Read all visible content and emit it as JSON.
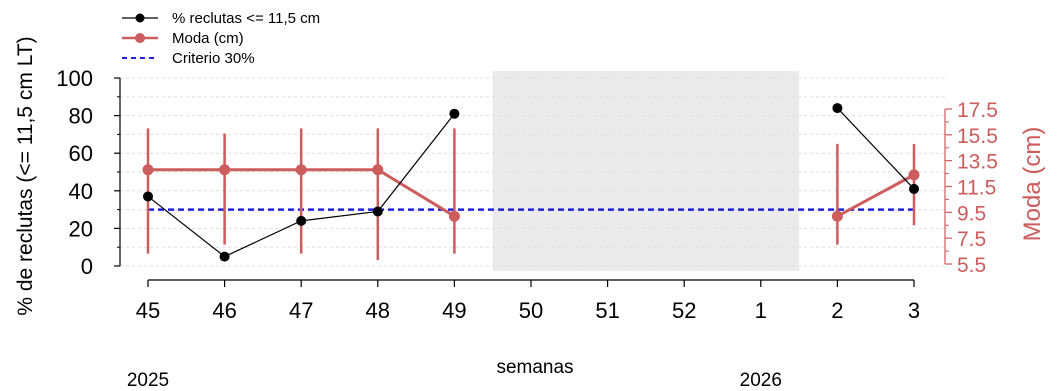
{
  "chart_data": {
    "type": "line",
    "title": "",
    "xlabel": "semanas",
    "ylabel": "% de reclutas (<= 11,5 cm LT)",
    "ylabel_right": "Moda (cm)",
    "categories": [
      "45",
      "46",
      "47",
      "48",
      "49",
      "50",
      "51",
      "52",
      "1",
      "2",
      "3"
    ],
    "years": [
      {
        "label": "2025",
        "at_category": "45"
      },
      {
        "label": "2026",
        "at_category": "1"
      }
    ],
    "ylim": [
      0,
      100
    ],
    "yticks": [
      "0",
      "20",
      "40",
      "60",
      "80",
      "100"
    ],
    "ylim_right": [
      5.5,
      17.5
    ],
    "yticks_right": [
      "5.5",
      "7.5",
      "9.5",
      "11.5",
      "13.5",
      "15.5",
      "17.5"
    ],
    "grid": true,
    "shaded_region": {
      "from": "50",
      "to": "1"
    },
    "legend_placement": "top-left",
    "series": [
      {
        "name": "% reclutas <= 11,5 cm",
        "color": "#000000",
        "axis": "left",
        "points": [
          {
            "x": "45",
            "y": 37
          },
          {
            "x": "46",
            "y": 5
          },
          {
            "x": "47",
            "y": 24
          },
          {
            "x": "48",
            "y": 29
          },
          {
            "x": "49",
            "y": 81
          },
          {
            "x": "2",
            "y": 84
          },
          {
            "x": "3",
            "y": 41
          }
        ]
      },
      {
        "name": "Moda (cm)",
        "color": "#cd5c5c",
        "axis": "right",
        "points": [
          {
            "x": "45",
            "y": 12.8,
            "low": 6.3,
            "high": 16.0
          },
          {
            "x": "46",
            "y": 12.8,
            "low": 7.0,
            "high": 15.6
          },
          {
            "x": "47",
            "y": 12.8,
            "low": 6.3,
            "high": 16.0
          },
          {
            "x": "48",
            "y": 12.8,
            "low": 5.8,
            "high": 16.0
          },
          {
            "x": "49",
            "y": 9.2,
            "low": 6.3,
            "high": 16.0
          },
          {
            "x": "2",
            "y": 9.2,
            "low": 7.0,
            "high": 14.8
          },
          {
            "x": "3",
            "y": 12.4,
            "low": 8.5,
            "high": 14.8
          }
        ]
      },
      {
        "name": "Criterio 30%",
        "color": "#2222dd",
        "axis": "left",
        "style": "dashed",
        "constant": 30
      }
    ]
  }
}
